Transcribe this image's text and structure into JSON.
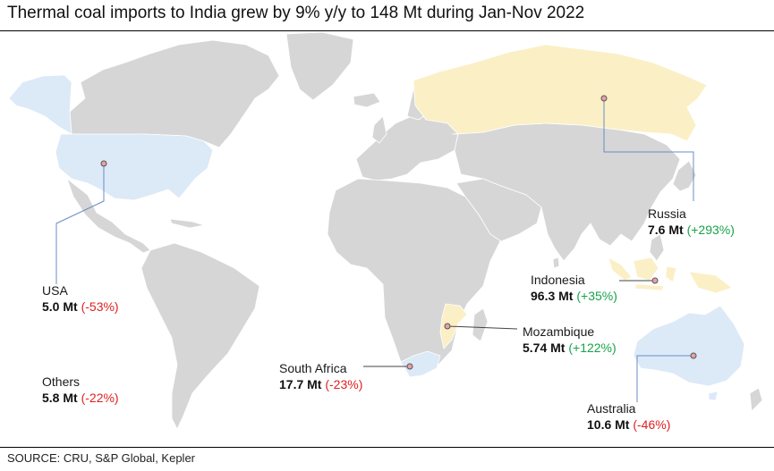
{
  "title": "Thermal coal imports to India grew by 9% y/y to 148 Mt during Jan-Nov 2022",
  "source": "SOURCE: CRU, S&P Global, Kepler",
  "colors": {
    "land": "#d6d6d6",
    "imports_decrease": "#dce9f7",
    "imports_increase": "#fbefc6",
    "negative_change": "#e02020",
    "positive_change": "#17a34a"
  },
  "countries": {
    "usa": {
      "name": "USA",
      "volume": "5.0 Mt",
      "change": "(-53%)"
    },
    "others": {
      "name": "Others",
      "volume": "5.8 Mt",
      "change": "(-22%)"
    },
    "south_africa": {
      "name": "South Africa",
      "volume": "17.7 Mt",
      "change": "(-23%)"
    },
    "mozambique": {
      "name": "Mozambique",
      "volume": "5.74 Mt",
      "change": "(+122%)"
    },
    "indonesia": {
      "name": "Indonesia",
      "volume": "96.3 Mt",
      "change": "(+35%)"
    },
    "russia": {
      "name": "Russia",
      "volume": "7.6 Mt",
      "change": "(+293%)"
    },
    "australia": {
      "name": "Australia",
      "volume": "10.6 Mt",
      "change": "(-46%)"
    }
  }
}
